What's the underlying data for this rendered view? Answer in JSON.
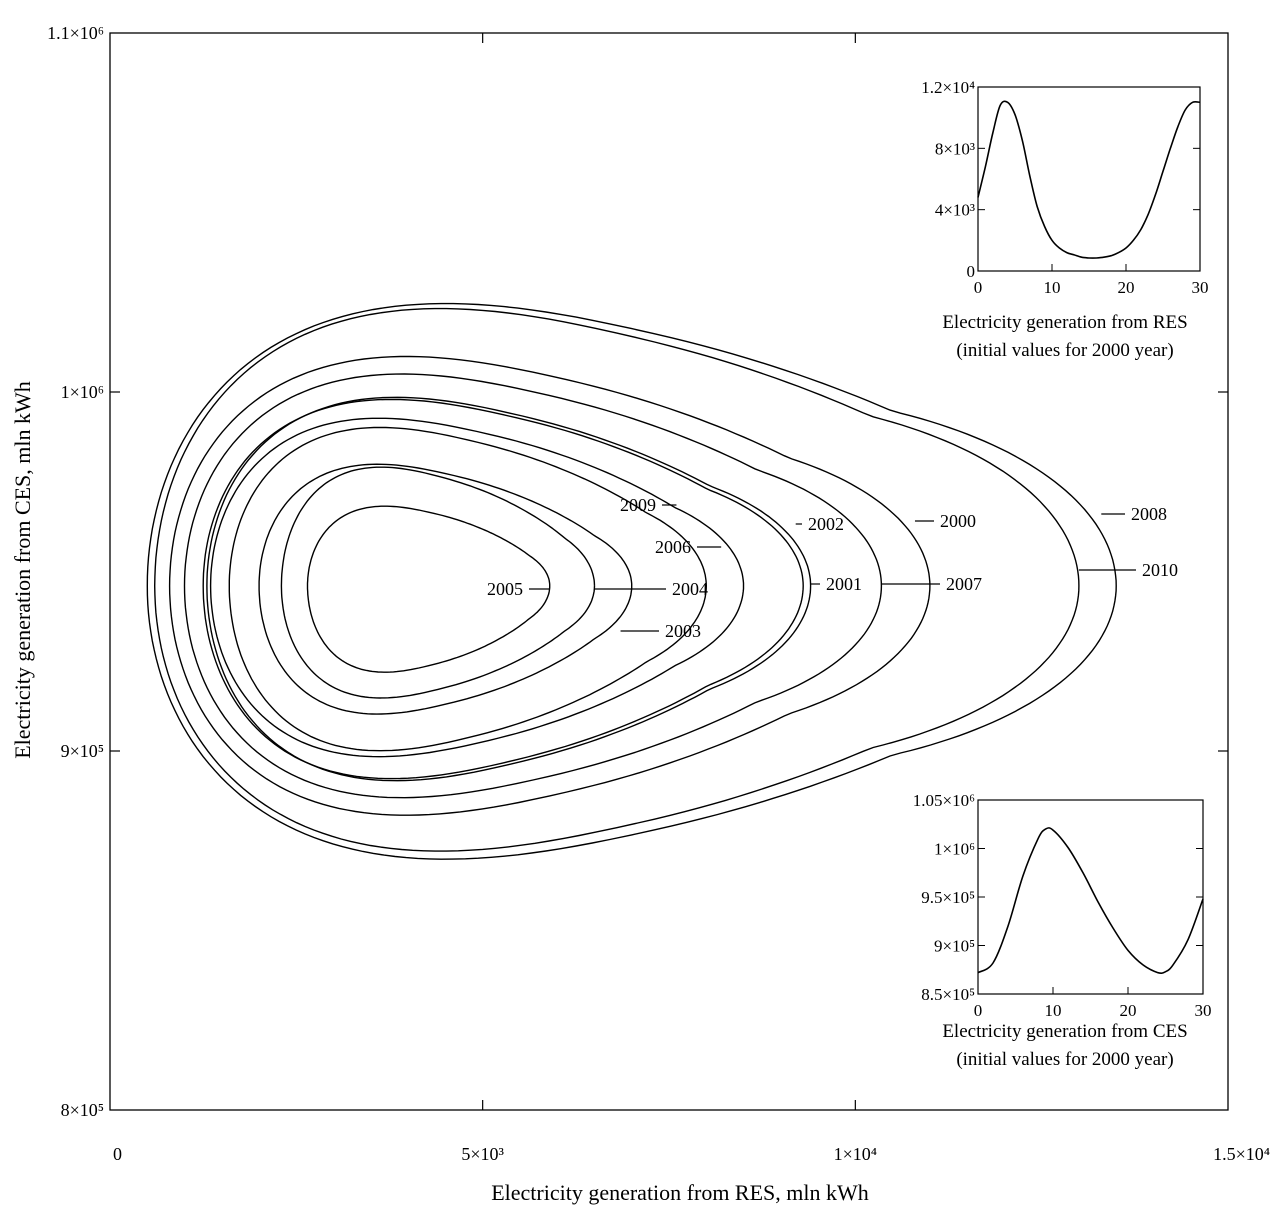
{
  "chart_data": [
    {
      "type": "line",
      "subtype": "phase-portrait",
      "xlabel": "Electricity generation from RES, mln kWh",
      "ylabel": "Electricity generation from CES, mln kWh",
      "xlim": [
        0,
        15000
      ],
      "ylim": [
        800000,
        1100000
      ],
      "x_ticks": [
        {
          "value": 0,
          "label": "0"
        },
        {
          "value": 5000,
          "label": "5×10³"
        },
        {
          "value": 10000,
          "label": "1×10⁴"
        },
        {
          "value": 15000,
          "label": "1.5×10⁴"
        }
      ],
      "y_ticks": [
        {
          "value": 800000,
          "label": "8×10⁵"
        },
        {
          "value": 900000,
          "label": "9×10⁵"
        },
        {
          "value": 1000000,
          "label": "1×10⁶"
        },
        {
          "value": 1100000,
          "label": "1.1×10⁶"
        }
      ],
      "grid": false,
      "center": {
        "x": 4000,
        "y": 946000
      },
      "series": [
        {
          "name": "2005",
          "x_min": 2650,
          "x_max": 5900,
          "y_min": 920000,
          "y_max": 970000
        },
        {
          "name": "2004",
          "x_min": 2300,
          "x_max": 6500,
          "y_min": 912000,
          "y_max": 982000
        },
        {
          "name": "2003",
          "x_min": 2000,
          "x_max": 7000,
          "y_min": 907000,
          "y_max": 983000
        },
        {
          "name": "2009",
          "x_min": 1600,
          "x_max": 8000,
          "y_min": 895000,
          "y_max": 995000
        },
        {
          "name": "2006",
          "x_min": 1350,
          "x_max": 8500,
          "y_min": 893000,
          "y_max": 998000
        },
        {
          "name": "2002",
          "x_min": 1250,
          "x_max": 9300,
          "y_min": 885000,
          "y_max": 1005000
        },
        {
          "name": "2001",
          "x_min": 1300,
          "x_max": 9400,
          "y_min": 884000,
          "y_max": 1006000
        },
        {
          "name": "2007",
          "x_min": 1000,
          "x_max": 10350,
          "y_min": 878000,
          "y_max": 1014000
        },
        {
          "name": "2000",
          "x_min": 800,
          "x_max": 11000,
          "y_min": 872000,
          "y_max": 1020000
        },
        {
          "name": "2010",
          "x_min": 600,
          "x_max": 13000,
          "y_min": 858000,
          "y_max": 1038000
        },
        {
          "name": "2008",
          "x_min": 500,
          "x_max": 13500,
          "y_min": 855000,
          "y_max": 1040000
        }
      ]
    },
    {
      "type": "line",
      "title": "Electricity generation from RES",
      "subtitle": "(initial values for 2000 year)",
      "xlim": [
        0,
        30
      ],
      "ylim": [
        0,
        12000
      ],
      "x_ticks": [
        {
          "value": 0,
          "label": "0"
        },
        {
          "value": 10,
          "label": "10"
        },
        {
          "value": 20,
          "label": "20"
        },
        {
          "value": 30,
          "label": "30"
        }
      ],
      "y_ticks": [
        {
          "value": 0,
          "label": "0"
        },
        {
          "value": 4000,
          "label": "4×10³"
        },
        {
          "value": 8000,
          "label": "8×10³"
        },
        {
          "value": 12000,
          "label": "1.2×10⁴"
        }
      ],
      "series": [
        {
          "x": [
            0,
            1,
            2,
            3,
            4,
            5,
            6,
            7,
            8,
            9,
            10,
            11,
            12,
            13,
            14,
            15,
            16,
            17,
            18,
            19,
            20,
            21,
            22,
            23,
            24,
            25,
            26,
            27,
            28,
            29,
            30
          ],
          "y": [
            4800,
            6800,
            9000,
            10800,
            11000,
            10200,
            8500,
            6200,
            4200,
            2900,
            2000,
            1500,
            1200,
            1050,
            900,
            850,
            850,
            900,
            1000,
            1200,
            1500,
            2000,
            2700,
            3700,
            5000,
            6500,
            8000,
            9400,
            10500,
            11000,
            11000
          ]
        }
      ]
    },
    {
      "type": "line",
      "title": "Electricity generation from CES",
      "subtitle": "(initial values for 2000 year)",
      "xlim": [
        0,
        30
      ],
      "ylim": [
        850000,
        1050000
      ],
      "x_ticks": [
        {
          "value": 0,
          "label": "0"
        },
        {
          "value": 10,
          "label": "10"
        },
        {
          "value": 20,
          "label": "20"
        },
        {
          "value": 30,
          "label": "30"
        }
      ],
      "y_ticks": [
        {
          "value": 850000,
          "label": "8.5×10⁵"
        },
        {
          "value": 900000,
          "label": "9×10⁵"
        },
        {
          "value": 950000,
          "label": "9.5×10⁵"
        },
        {
          "value": 1000000,
          "label": "1×10⁶"
        },
        {
          "value": 1050000,
          "label": "1.05×10⁶"
        }
      ],
      "series": [
        {
          "x": [
            0,
            2,
            4,
            6,
            8,
            9,
            10,
            12,
            14,
            16,
            18,
            20,
            22,
            24,
            25,
            26,
            28,
            30
          ],
          "y": [
            872000,
            882000,
            920000,
            972000,
            1010000,
            1020000,
            1019000,
            1001000,
            975000,
            945000,
            918000,
            895000,
            880000,
            872000,
            873000,
            880000,
            906000,
            948000
          ]
        }
      ]
    }
  ]
}
